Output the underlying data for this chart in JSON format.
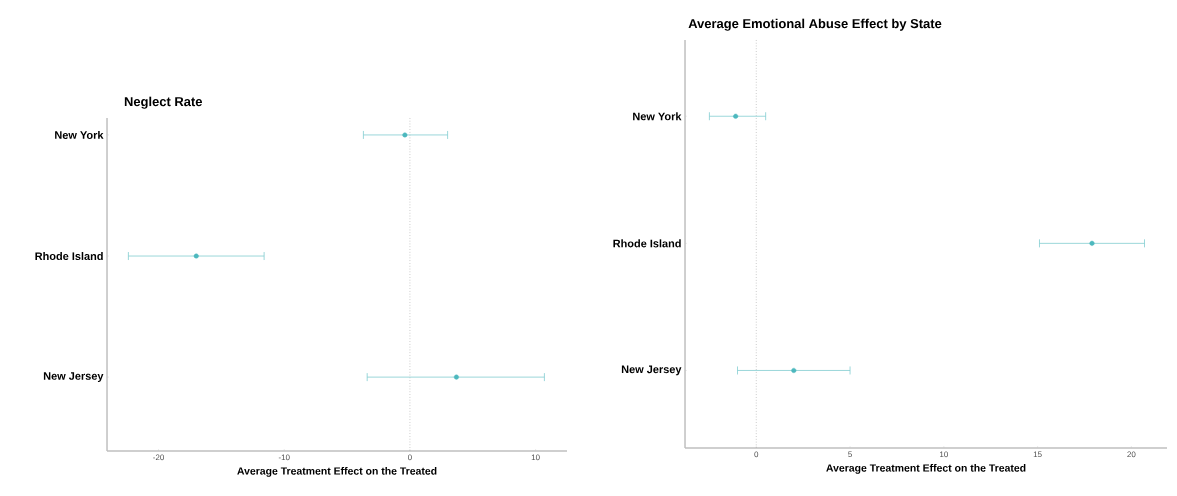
{
  "chart_data": [
    {
      "type": "scatter",
      "orientation": "horizontal",
      "title": "Neglect Rate",
      "xlabel": "Average Treatment Effect on the Treated",
      "categories": [
        "New York",
        "Rhode Island",
        "New Jersey"
      ],
      "values": [
        -0.4,
        -17.0,
        3.7
      ],
      "errors": [
        [
          -3.7,
          3.0
        ],
        [
          -22.4,
          -11.6
        ],
        [
          -3.4,
          10.7
        ]
      ],
      "color": "#4db8be",
      "marker": "circle",
      "xlim": [
        -24.1,
        12.5
      ],
      "xticks": [
        -20,
        -10,
        0,
        10
      ],
      "ref_lines": [
        {
          "axis": "x",
          "value": 0,
          "color": "#b0b0b0",
          "line_style": "dotted"
        }
      ]
    },
    {
      "type": "scatter",
      "orientation": "horizontal",
      "title": "Average Emotional Abuse Effect by State",
      "xlabel": "Average Treatment Effect on the Treated",
      "categories": [
        "New York",
        "Rhode Island",
        "New Jersey"
      ],
      "values": [
        -1.1,
        17.9,
        2.0
      ],
      "errors": [
        [
          -2.5,
          0.5
        ],
        [
          15.1,
          20.7
        ],
        [
          -1.0,
          5.0
        ]
      ],
      "color": "#4db8be",
      "marker": "circle",
      "xlim": [
        -3.8,
        21.9
      ],
      "xticks": [
        0,
        5,
        10,
        15,
        20
      ],
      "ref_lines": [
        {
          "axis": "x",
          "value": 0,
          "color": "#b0b0b0",
          "line_style": "dotted"
        }
      ]
    }
  ]
}
